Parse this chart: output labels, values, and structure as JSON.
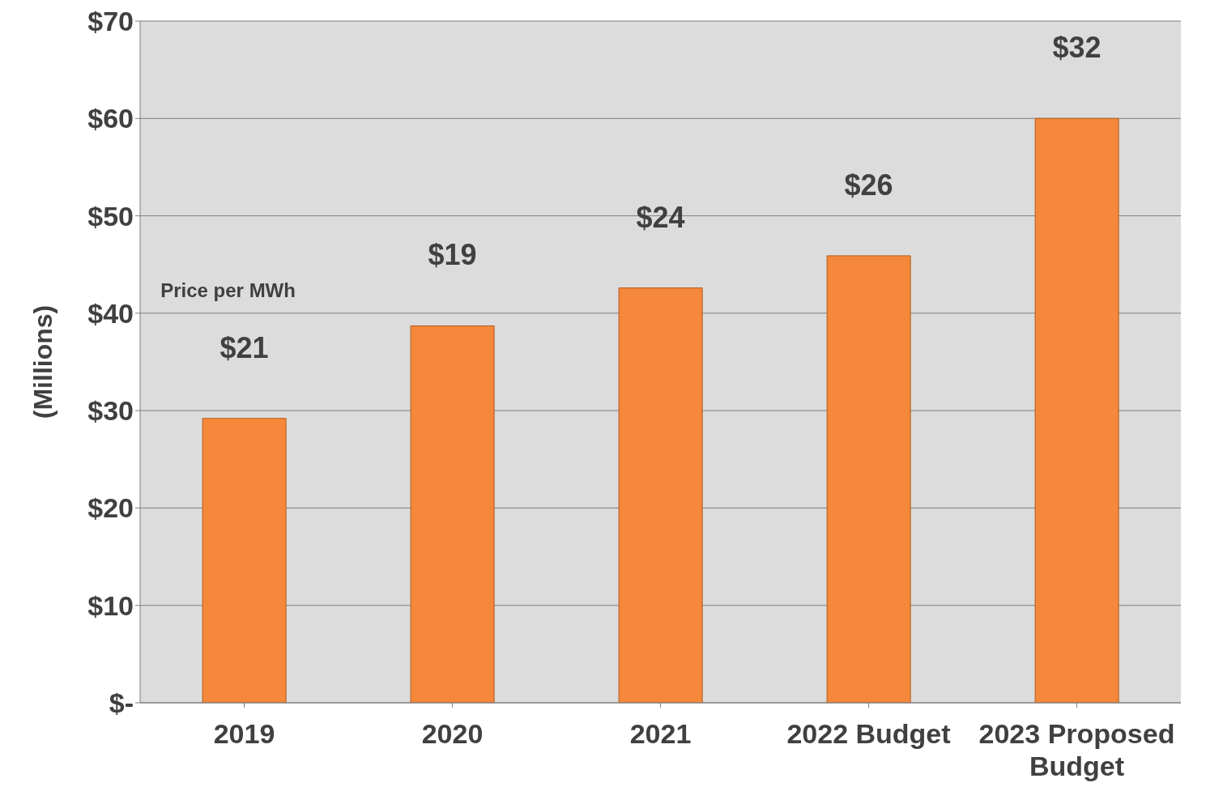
{
  "chart_data": {
    "type": "bar",
    "categories": [
      "2019",
      "2020",
      "2021",
      "2022 Budget",
      "2023 Proposed Budget"
    ],
    "values": [
      29.2,
      38.7,
      42.6,
      45.9,
      60
    ],
    "color": "#f5883a",
    "ylabel": "(Millions)",
    "ylim": [
      0,
      70
    ],
    "yticks": [
      {
        "value": 0,
        "label": "$-"
      },
      {
        "value": 10,
        "label": "$10"
      },
      {
        "value": 20,
        "label": "$20"
      },
      {
        "value": 30,
        "label": "$30"
      },
      {
        "value": 40,
        "label": "$40"
      },
      {
        "value": 50,
        "label": "$50"
      },
      {
        "value": 60,
        "label": "$60"
      },
      {
        "value": 70,
        "label": "$70"
      }
    ],
    "grid": "y",
    "annotations": [
      "Price per MWh",
      "$21",
      "$19",
      "$24",
      "$26",
      "$32"
    ]
  }
}
